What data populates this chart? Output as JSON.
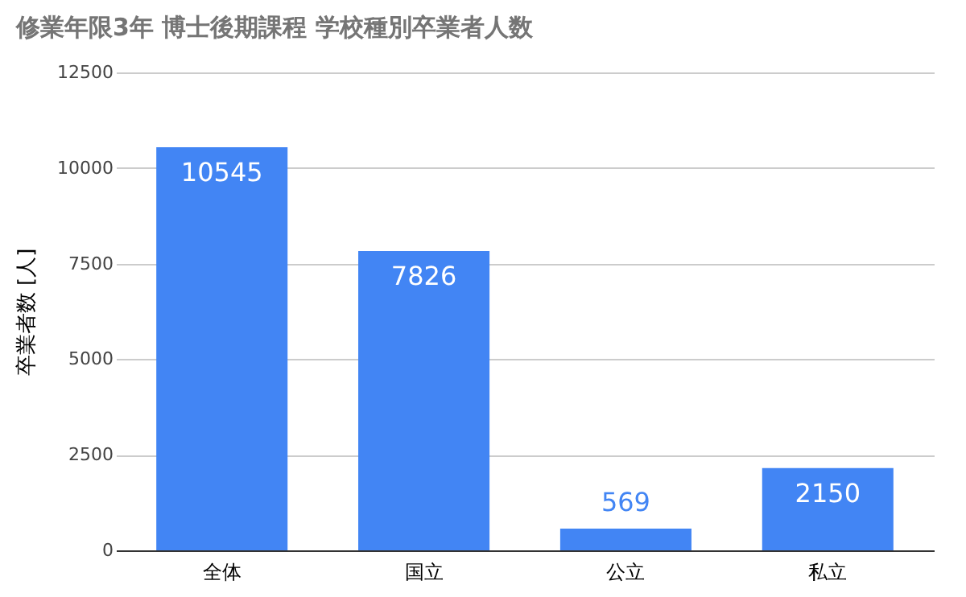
{
  "chart_data": {
    "type": "bar",
    "title": "修業年限3年 博士後期課程 学校種別卒業者人数",
    "ylabel": "卒業者数 [人]",
    "categories": [
      "全体",
      "国立",
      "公立",
      "私立"
    ],
    "values": [
      10545,
      7826,
      569,
      2150
    ],
    "color": "#4285f4",
    "ylim": [
      0,
      12500
    ],
    "yticks": [
      0,
      2500,
      5000,
      7500,
      10000,
      12500
    ],
    "grid": "y",
    "data_labels": true
  }
}
